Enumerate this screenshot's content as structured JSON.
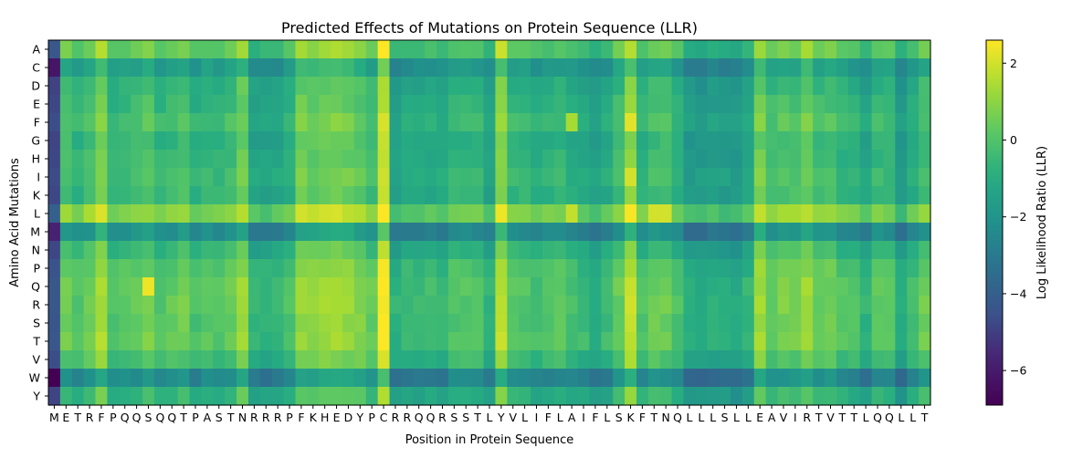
{
  "chart_data": {
    "type": "heatmap",
    "title": "Predicted Effects of Mutations on Protein Sequence (LLR)",
    "xlabel": "Position in Protein Sequence",
    "ylabel": "Amino Acid Mutations",
    "x_categories": [
      "M",
      "E",
      "T",
      "R",
      "F",
      "P",
      "Q",
      "Q",
      "S",
      "Q",
      "Q",
      "T",
      "P",
      "A",
      "S",
      "T",
      "N",
      "R",
      "R",
      "R",
      "P",
      "F",
      "K",
      "H",
      "E",
      "D",
      "Y",
      "P",
      "C",
      "R",
      "R",
      "Q",
      "Q",
      "R",
      "S",
      "S",
      "T",
      "L",
      "Y",
      "V",
      "L",
      "I",
      "F",
      "L",
      "A",
      "I",
      "F",
      "L",
      "S",
      "K",
      "F",
      "T",
      "N",
      "Q",
      "L",
      "L",
      "L",
      "S",
      "L",
      "L",
      "E",
      "A",
      "V",
      "I",
      "R",
      "T",
      "V",
      "T",
      "T",
      "L",
      "Q",
      "Q",
      "L",
      "L",
      "T"
    ],
    "y_categories": [
      "A",
      "C",
      "D",
      "E",
      "F",
      "G",
      "H",
      "I",
      "K",
      "L",
      "M",
      "N",
      "P",
      "Q",
      "R",
      "S",
      "T",
      "V",
      "W",
      "Y"
    ],
    "colormap": "viridis",
    "colorbar": {
      "label": "Log Likelihood Ratio (LLR)",
      "min": -6.9,
      "max": 2.6,
      "ticks": [
        2,
        0,
        -2,
        -4,
        -6
      ],
      "tick_labels": [
        "2",
        "0",
        "−2",
        "−4",
        "−6"
      ]
    },
    "column_bias": [
      -4.5,
      0.2,
      -0.2,
      0.3,
      1.2,
      -0.2,
      -0.1,
      0.1,
      0.4,
      -0.2,
      0.0,
      0.3,
      -0.4,
      -0.1,
      -0.2,
      0.1,
      0.9,
      -0.9,
      -0.9,
      -0.8,
      -0.4,
      0.9,
      0.8,
      1.0,
      1.0,
      0.9,
      0.6,
      0.1,
      2.2,
      -1.0,
      -0.7,
      -0.7,
      -0.6,
      -0.7,
      -0.2,
      -0.2,
      -0.3,
      -0.9,
      1.4,
      -0.1,
      -0.2,
      -0.5,
      -0.3,
      -0.1,
      -0.5,
      -0.7,
      -1.1,
      -0.6,
      0.1,
      1.5,
      -0.3,
      0.2,
      0.2,
      -0.4,
      -1.3,
      -1.3,
      -1.1,
      -1.2,
      -1.4,
      -0.9,
      1.0,
      0.1,
      0.4,
      0.3,
      0.9,
      0.2,
      0.3,
      -0.2,
      -0.3,
      -0.9,
      -0.1,
      -0.1,
      -1.3,
      -0.5,
      0.2
    ],
    "row_bias": [
      0.3,
      -1.5,
      -0.7,
      -0.5,
      -0.2,
      -0.6,
      -0.5,
      -0.3,
      -0.5,
      0.9,
      -2.1,
      -0.5,
      0.1,
      0.3,
      0.3,
      0.2,
      0.3,
      -0.2,
      -2.3,
      -0.6
    ],
    "overrides": [
      {
        "row": "Q",
        "col": 8,
        "value": 2.4
      },
      {
        "row": "L",
        "col": 38,
        "value": 2.4
      },
      {
        "row": "L",
        "col": 49,
        "value": 2.5
      },
      {
        "row": "F",
        "col": 49,
        "value": 2.2
      },
      {
        "row": "I",
        "col": 49,
        "value": 2.0
      },
      {
        "row": "L",
        "col": 51,
        "value": 2.0
      },
      {
        "row": "L",
        "col": 52,
        "value": 2.0
      },
      {
        "row": "L",
        "col": 44,
        "value": 1.8
      },
      {
        "row": "L",
        "col": 60,
        "value": 1.8
      },
      {
        "row": "F",
        "col": 44,
        "value": 1.4
      },
      {
        "row": "W",
        "col": 0,
        "value": -6.9
      },
      {
        "row": "C",
        "col": 0,
        "value": -6.2
      }
    ]
  }
}
